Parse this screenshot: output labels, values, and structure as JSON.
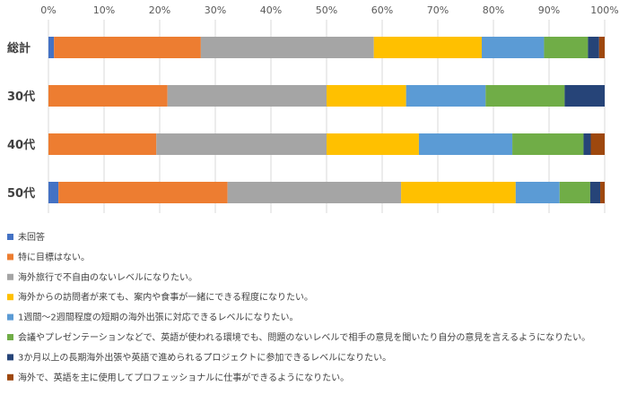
{
  "chart_data": {
    "type": "bar",
    "orientation": "horizontal",
    "stacked": true,
    "percent": true,
    "xlim": [
      0,
      100
    ],
    "x_ticks": [
      "0%",
      "10%",
      "20%",
      "30%",
      "40%",
      "50%",
      "60%",
      "70%",
      "80%",
      "90%",
      "100%"
    ],
    "categories": [
      "総計",
      "30代",
      "40代",
      "50代"
    ],
    "grid": true,
    "legend_position": "bottom",
    "series": [
      {
        "name": "未回答",
        "color": "#4472C4",
        "values": [
          1.0,
          0.0,
          0.0,
          1.8
        ]
      },
      {
        "name": "特に目標はない。",
        "color": "#ED7D31",
        "values": [
          26.4,
          21.4,
          19.4,
          30.4
        ]
      },
      {
        "name": "海外旅行で不自由のないレベルになりたい。",
        "color": "#A5A5A5",
        "values": [
          31.1,
          28.6,
          30.6,
          31.2
        ]
      },
      {
        "name": "海外からの訪問者が来ても、案内や食事が一緒にできる程度になりたい。",
        "color": "#FFC000",
        "values": [
          19.4,
          14.3,
          16.6,
          20.6
        ]
      },
      {
        "name": "1週間～2週間程度の短期の海外出張に対応できるレベルになりたい。",
        "color": "#5B9BD5",
        "values": [
          11.2,
          14.3,
          16.8,
          7.9
        ]
      },
      {
        "name": "会議やプレゼンテーションなどで、英語が使われる環境でも、問題のないレベルで相手の意見を聞いたり自分の意見を言えるようになりたい。",
        "color": "#70AD47",
        "values": [
          7.9,
          14.2,
          12.8,
          5.5
        ]
      },
      {
        "name": "3か月以上の長期海外出張や英語で進められるプロジェクトに参加できるレベルになりたい。",
        "color": "#264478",
        "values": [
          2.0,
          7.2,
          1.3,
          1.8
        ]
      },
      {
        "name": "海外で、英語を主に使用してプロフェッショナルに仕事ができるようになりたい。",
        "color": "#9E480E",
        "values": [
          1.0,
          0.0,
          2.5,
          0.8
        ]
      }
    ]
  }
}
